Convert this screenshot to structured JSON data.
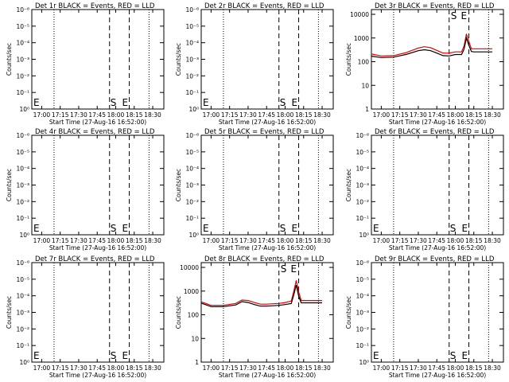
{
  "window": {
    "title": ""
  },
  "colors": {
    "axis": "#000000",
    "events": "#000000",
    "lld": "#e00000"
  },
  "chart_data": [
    {
      "type": "line",
      "panel": "Det 1r",
      "title": "Det 1r BLACK = Events, RED = LLD",
      "xlabel": "Start Time (27-Aug-16 16:52:00)",
      "ylabel": "Counts/sec",
      "xlim": [
        "16:52",
        "18:39"
      ],
      "x_ticks": [
        "17:00",
        "17:15",
        "17:30",
        "17:45",
        "18:00",
        "18:15",
        "18:30"
      ],
      "y_scale": "log",
      "y_ticks": [
        "10⁰",
        "10⁻¹",
        "10⁻²",
        "10⁻³",
        "10⁻⁴",
        "10⁻⁵",
        "10⁻⁶"
      ],
      "dotted_lines": [
        "17:10",
        "18:27"
      ],
      "dashed_lines": [
        "17:55",
        "18:11"
      ],
      "markers": [
        "E",
        "S",
        "E"
      ],
      "series": []
    },
    {
      "type": "line",
      "panel": "Det 2r",
      "title": "Det 2r BLACK = Events, RED = LLD",
      "xlabel": "Start Time (27-Aug-16 16:52:00)",
      "ylabel": "Counts/sec",
      "xlim": [
        "16:52",
        "18:39"
      ],
      "x_ticks": [
        "17:00",
        "17:15",
        "17:30",
        "17:45",
        "18:00",
        "18:15",
        "18:30"
      ],
      "y_scale": "log",
      "y_ticks": [
        "10⁰",
        "10⁻¹",
        "10⁻²",
        "10⁻³",
        "10⁻⁴",
        "10⁻⁵",
        "10⁻⁶"
      ],
      "dotted_lines": [
        "17:10",
        "18:27"
      ],
      "dashed_lines": [
        "17:55",
        "18:11"
      ],
      "markers": [
        "E",
        "S",
        "E"
      ],
      "series": []
    },
    {
      "type": "line",
      "panel": "Det 3r",
      "title": "Det 3r BLACK = Events, RED = LLD",
      "xlabel": "Start Time (27-Aug-16 16:52:00)",
      "ylabel": "Counts/sec",
      "xlim": [
        "16:52",
        "18:39"
      ],
      "x_ticks": [
        "17:00",
        "17:15",
        "17:30",
        "17:45",
        "18:00",
        "18:15",
        "18:30"
      ],
      "y_scale": "log",
      "y_ticks": [
        "1",
        "10",
        "100",
        "1000",
        "10000"
      ],
      "dotted_lines": [
        "17:10",
        "18:27"
      ],
      "dashed_lines": [
        "17:55",
        "18:11"
      ],
      "markers": [
        "S",
        "E"
      ],
      "series": [
        {
          "color": "red",
          "x": [
            "16:52",
            "17:00",
            "17:10",
            "17:20",
            "17:30",
            "17:35",
            "17:40",
            "17:45",
            "17:50",
            "17:55",
            "18:00",
            "18:05",
            "18:07",
            "18:09",
            "18:11",
            "18:13",
            "18:15",
            "18:20",
            "18:25",
            "18:30"
          ],
          "y": [
            210,
            175,
            180,
            240,
            380,
            430,
            390,
            300,
            230,
            230,
            260,
            260,
            450,
            1500,
            700,
            350,
            350,
            350,
            350,
            350
          ]
        },
        {
          "color": "black",
          "x": [
            "16:52",
            "17:00",
            "17:10",
            "17:20",
            "17:30",
            "17:35",
            "17:40",
            "17:45",
            "17:50",
            "17:55",
            "18:00",
            "18:05",
            "18:07",
            "18:09",
            "18:11",
            "18:13",
            "18:15",
            "18:20",
            "18:25",
            "18:30"
          ],
          "y": [
            170,
            150,
            155,
            200,
            290,
            320,
            290,
            230,
            180,
            175,
            200,
            200,
            330,
            1000,
            480,
            270,
            260,
            260,
            260,
            260
          ]
        }
      ]
    },
    {
      "type": "line",
      "panel": "Det 4r",
      "title": "Det 4r BLACK = Events, RED = LLD",
      "xlabel": "Start Time (27-Aug-16 16:52:00)",
      "ylabel": "Counts/sec",
      "xlim": [
        "16:52",
        "18:39"
      ],
      "x_ticks": [
        "17:00",
        "17:15",
        "17:30",
        "17:45",
        "18:00",
        "18:15",
        "18:30"
      ],
      "y_scale": "log",
      "y_ticks": [
        "10⁰",
        "10⁻¹",
        "10⁻²",
        "10⁻³",
        "10⁻⁴",
        "10⁻⁵",
        "10⁻⁶"
      ],
      "dotted_lines": [
        "17:10",
        "18:27"
      ],
      "dashed_lines": [
        "17:55",
        "18:11"
      ],
      "markers": [
        "E",
        "S",
        "E"
      ],
      "series": []
    },
    {
      "type": "line",
      "panel": "Det 5r",
      "title": "Det 5r BLACK = Events, RED = LLD",
      "xlabel": "Start Time (27-Aug-16 16:52:00)",
      "ylabel": "Counts/sec",
      "xlim": [
        "16:52",
        "18:39"
      ],
      "x_ticks": [
        "17:00",
        "17:15",
        "17:30",
        "17:45",
        "18:00",
        "18:15",
        "18:30"
      ],
      "y_scale": "log",
      "y_ticks": [
        "10⁰",
        "10⁻¹",
        "10⁻²",
        "10⁻³",
        "10⁻⁴",
        "10⁻⁵",
        "10⁻⁶"
      ],
      "dotted_lines": [
        "17:10",
        "18:27"
      ],
      "dashed_lines": [
        "17:55",
        "18:11"
      ],
      "markers": [
        "E",
        "S",
        "E"
      ],
      "series": []
    },
    {
      "type": "line",
      "panel": "Det 6r",
      "title": "Det 6r BLACK = Events, RED = LLD",
      "xlabel": "Start Time (27-Aug-16 16:52:00)",
      "ylabel": "Counts/sec",
      "xlim": [
        "16:52",
        "18:39"
      ],
      "x_ticks": [
        "17:00",
        "17:15",
        "17:30",
        "17:45",
        "18:00",
        "18:15",
        "18:30"
      ],
      "y_scale": "log",
      "y_ticks": [
        "10⁰",
        "10⁻¹",
        "10⁻²",
        "10⁻³",
        "10⁻⁴",
        "10⁻⁵",
        "10⁻⁶"
      ],
      "dotted_lines": [
        "17:10",
        "18:27"
      ],
      "dashed_lines": [
        "17:55",
        "18:11"
      ],
      "markers": [
        "E",
        "S",
        "E"
      ],
      "series": []
    },
    {
      "type": "line",
      "panel": "Det 7r",
      "title": "Det 7r BLACK = Events, RED = LLD",
      "xlabel": "Start Time (27-Aug-16 16:52:00)",
      "ylabel": "Counts/sec",
      "xlim": [
        "16:52",
        "18:39"
      ],
      "x_ticks": [
        "17:00",
        "17:15",
        "17:30",
        "17:45",
        "18:00",
        "18:15",
        "18:30"
      ],
      "y_scale": "log",
      "y_ticks": [
        "10⁰",
        "10⁻¹",
        "10⁻²",
        "10⁻³",
        "10⁻⁴",
        "10⁻⁵",
        "10⁻⁶"
      ],
      "dotted_lines": [
        "17:10",
        "18:27"
      ],
      "dashed_lines": [
        "17:55",
        "18:11"
      ],
      "markers": [
        "E",
        "S",
        "E"
      ],
      "series": []
    },
    {
      "type": "line",
      "panel": "Det 8r",
      "title": "Det 8r BLACK = Events, RED = LLD",
      "xlabel": "Start Time (27-Aug-16 16:52:00)",
      "ylabel": "Counts/sec",
      "xlim": [
        "16:52",
        "18:39"
      ],
      "x_ticks": [
        "17:00",
        "17:15",
        "17:30",
        "17:45",
        "18:00",
        "18:15",
        "18:30"
      ],
      "y_scale": "log",
      "y_ticks": [
        "1",
        "10",
        "100",
        "1000",
        "10000"
      ],
      "dotted_lines": [
        "17:10",
        "18:27"
      ],
      "dashed_lines": [
        "17:55",
        "18:11"
      ],
      "markers": [
        "S",
        "E"
      ],
      "series": [
        {
          "color": "red",
          "x": [
            "16:52",
            "17:00",
            "17:10",
            "17:20",
            "17:25",
            "17:30",
            "17:35",
            "17:40",
            "17:45",
            "17:50",
            "17:55",
            "18:00",
            "18:05",
            "18:07",
            "18:09",
            "18:11",
            "18:13",
            "18:15",
            "18:20",
            "18:25",
            "18:30"
          ],
          "y": [
            350,
            250,
            250,
            300,
            420,
            400,
            330,
            280,
            280,
            290,
            300,
            330,
            380,
            1000,
            2800,
            900,
            400,
            400,
            400,
            400,
            400
          ]
        },
        {
          "color": "black",
          "x": [
            "16:52",
            "17:00",
            "17:10",
            "17:20",
            "17:25",
            "17:30",
            "17:35",
            "17:40",
            "17:45",
            "17:50",
            "17:55",
            "18:00",
            "18:05",
            "18:07",
            "18:09",
            "18:11",
            "18:13",
            "18:15",
            "18:20",
            "18:25",
            "18:30"
          ],
          "y": [
            310,
            220,
            220,
            260,
            360,
            330,
            270,
            230,
            230,
            240,
            250,
            270,
            300,
            700,
            1800,
            600,
            320,
            320,
            320,
            320,
            320
          ]
        }
      ]
    },
    {
      "type": "line",
      "panel": "Det 9r",
      "title": "Det 9r BLACK = Events, RED = LLD",
      "xlabel": "Start Time (27-Aug-16 16:52:00)",
      "ylabel": "Counts/sec",
      "xlim": [
        "16:52",
        "18:39"
      ],
      "x_ticks": [
        "17:00",
        "17:15",
        "17:30",
        "17:45",
        "18:00",
        "18:15",
        "18:30"
      ],
      "y_scale": "log",
      "y_ticks": [
        "10⁰",
        "10⁻¹",
        "10⁻²",
        "10⁻³",
        "10⁻⁴",
        "10⁻⁵",
        "10⁻⁶"
      ],
      "dotted_lines": [
        "17:10",
        "18:27"
      ],
      "dashed_lines": [
        "17:55",
        "18:11"
      ],
      "markers": [
        "E",
        "S",
        "E"
      ],
      "series": []
    }
  ]
}
